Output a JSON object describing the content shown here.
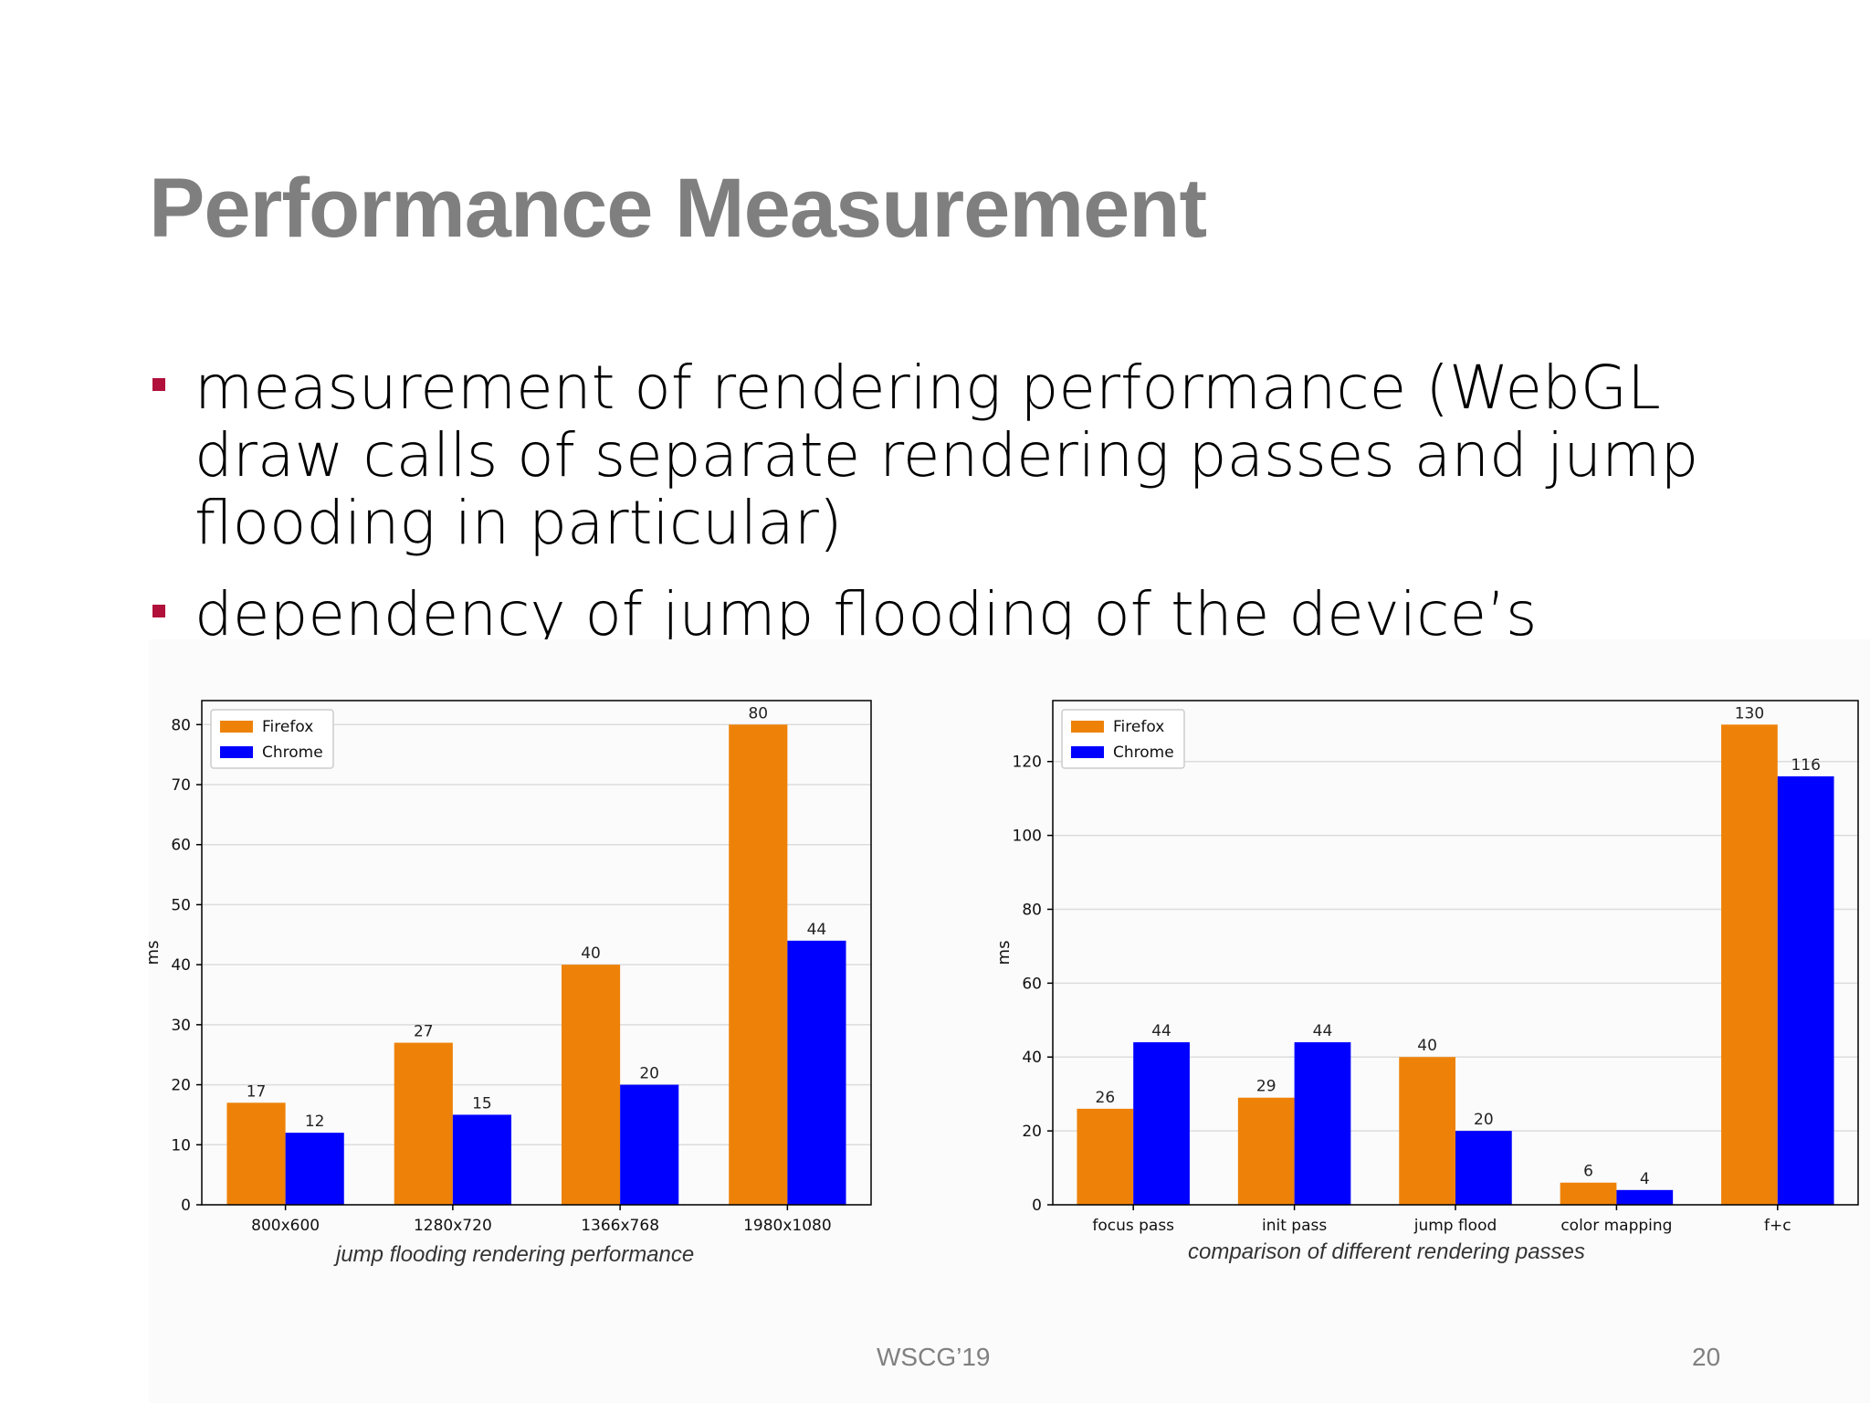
{
  "slide": {
    "title": "Performance Measurement",
    "bullets": [
      "measurement of rendering performance (WebGL draw calls of separate rendering passes and jump flooding in particular)",
      "dependency of jump flooding of the device’s resolution"
    ],
    "footer_center": "WSCG’19",
    "footer_page": "20",
    "bullet_color": "#b0103a"
  },
  "chart_data": [
    {
      "type": "bar",
      "caption": "jump flooding rendering performance",
      "categories": [
        "800x600",
        "1280x720",
        "1366x768",
        "1980x1080"
      ],
      "series": [
        {
          "name": "Firefox",
          "color": "#ee8208",
          "values": [
            17,
            27,
            40,
            80
          ]
        },
        {
          "name": "Chrome",
          "color": "#0000ff",
          "values": [
            12,
            15,
            20,
            44
          ]
        }
      ],
      "ylabel": "ms",
      "ylim": [
        0,
        84
      ],
      "yticks": [
        0,
        10,
        20,
        30,
        40,
        50,
        60,
        70,
        80
      ],
      "grid": true,
      "legend": "top-left"
    },
    {
      "type": "bar",
      "caption": "comparison of different rendering passes",
      "categories": [
        "focus pass",
        "init pass",
        "jump flood",
        "color mapping",
        "f+c"
      ],
      "series": [
        {
          "name": "Firefox",
          "color": "#ee8208",
          "values": [
            26,
            29,
            40,
            6,
            130
          ]
        },
        {
          "name": "Chrome",
          "color": "#0000ff",
          "values": [
            44,
            44,
            20,
            4,
            116
          ]
        }
      ],
      "ylabel": "ms",
      "ylim": [
        0,
        136.5
      ],
      "yticks": [
        0,
        20,
        40,
        60,
        80,
        100,
        120
      ],
      "grid": true,
      "legend": "top-left"
    }
  ]
}
